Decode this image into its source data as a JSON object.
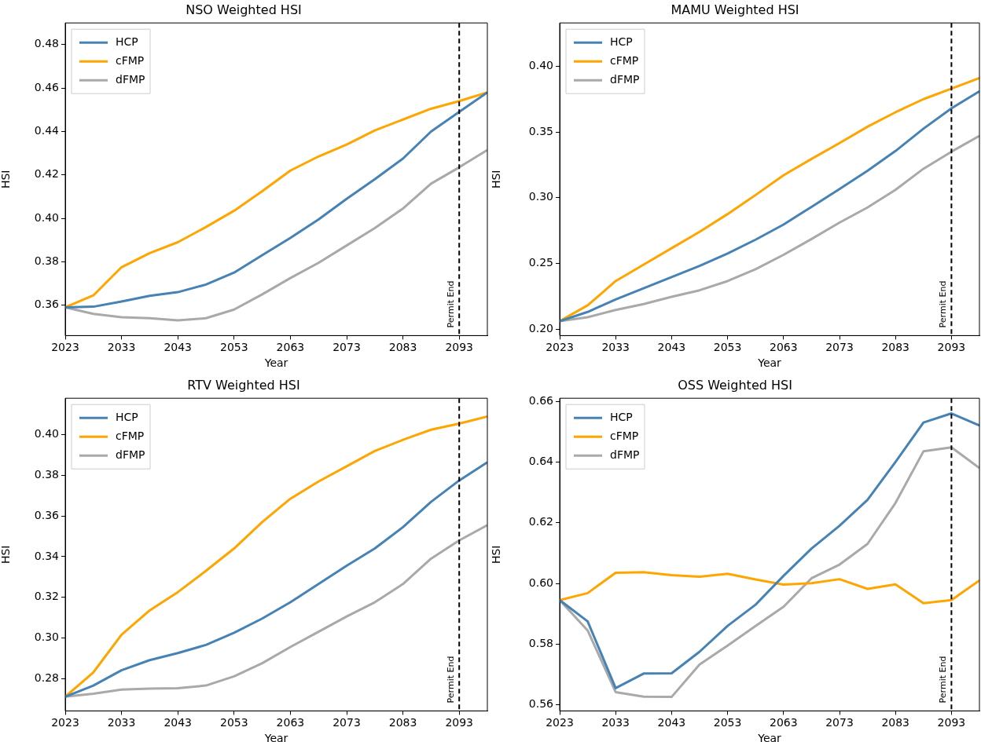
{
  "chart_data": [
    {
      "type": "line",
      "title": "NSO Weighted HSI",
      "xlabel": "Year",
      "ylabel": "HSI",
      "legend": "top left",
      "x": [
        2023,
        2028,
        2033,
        2038,
        2043,
        2048,
        2053,
        2058,
        2063,
        2068,
        2073,
        2078,
        2083,
        2088,
        2093,
        2098
      ],
      "series": [
        {
          "name": "HCP",
          "color": "#4682b4",
          "values": [
            0.359,
            0.3593,
            0.3617,
            0.3643,
            0.366,
            0.3695,
            0.375,
            0.383,
            0.391,
            0.3995,
            0.409,
            0.418,
            0.4275,
            0.44,
            0.449,
            0.458
          ]
        },
        {
          "name": "cFMP",
          "color": "#ffa500",
          "values": [
            0.359,
            0.3645,
            0.3775,
            0.384,
            0.389,
            0.396,
            0.4035,
            0.4125,
            0.422,
            0.4285,
            0.434,
            0.4405,
            0.4455,
            0.4505,
            0.454,
            0.458
          ]
        },
        {
          "name": "dFMP",
          "color": "#a9a9a9",
          "values": [
            0.359,
            0.356,
            0.3545,
            0.354,
            0.353,
            0.354,
            0.358,
            0.365,
            0.3725,
            0.3795,
            0.3875,
            0.3955,
            0.4045,
            0.416,
            0.4235,
            0.4315
          ]
        }
      ],
      "xlim": [
        2023,
        2098
      ],
      "xticks": [
        2023,
        2033,
        2043,
        2053,
        2063,
        2073,
        2083,
        2093
      ],
      "ylim": [
        0.346,
        0.49
      ],
      "yticks": [
        0.36,
        0.38,
        {
          "value": 0.4,
          "label": "0.40"
        },
        0.42,
        0.44,
        0.46,
        0.48
      ],
      "ref_lines": [
        {
          "axis": "x",
          "value": 2093,
          "label": "Permit End",
          "color": "#000000",
          "line_style": "dashed"
        }
      ]
    },
    {
      "type": "line",
      "title": "MAMU Weighted HSI",
      "xlabel": "Year",
      "ylabel": "HSI",
      "legend": "top left",
      "x": [
        2023,
        2028,
        2033,
        2038,
        2043,
        2048,
        2053,
        2058,
        2063,
        2068,
        2073,
        2078,
        2083,
        2088,
        2093,
        2098
      ],
      "series": [
        {
          "name": "HCP",
          "color": "#4682b4",
          "values": [
            0.206,
            0.213,
            0.2225,
            0.231,
            0.2395,
            0.248,
            0.2575,
            0.268,
            0.2795,
            0.293,
            0.3065,
            0.3205,
            0.3355,
            0.3525,
            0.368,
            0.381
          ]
        },
        {
          "name": "cFMP",
          "color": "#ffa500",
          "values": [
            0.206,
            0.218,
            0.2365,
            0.249,
            0.2615,
            0.274,
            0.2875,
            0.302,
            0.317,
            0.3295,
            0.3415,
            0.354,
            0.365,
            0.375,
            0.383,
            0.391
          ]
        },
        {
          "name": "dFMP",
          "color": "#a9a9a9",
          "values": [
            0.206,
            0.209,
            0.2145,
            0.219,
            0.2245,
            0.2295,
            0.2365,
            0.2455,
            0.2565,
            0.2685,
            0.281,
            0.2925,
            0.306,
            0.322,
            0.335,
            0.347
          ]
        }
      ],
      "xlim": [
        2023,
        2098
      ],
      "xticks": [
        2023,
        2033,
        2043,
        2053,
        2063,
        2073,
        2083,
        2093
      ],
      "ylim": [
        0.195,
        0.433
      ],
      "yticks": [
        {
          "value": 0.2,
          "label": "0.20"
        },
        0.25,
        {
          "value": 0.3,
          "label": "0.30"
        },
        0.35,
        {
          "value": 0.4,
          "label": "0.40"
        }
      ],
      "ref_lines": [
        {
          "axis": "x",
          "value": 2093,
          "label": "Permit End",
          "color": "#000000",
          "line_style": "dashed"
        }
      ]
    },
    {
      "type": "line",
      "title": "RTV Weighted HSI",
      "xlabel": "Year",
      "ylabel": "HSI",
      "legend": "top left",
      "x": [
        2023,
        2028,
        2033,
        2038,
        2043,
        2048,
        2053,
        2058,
        2063,
        2068,
        2073,
        2078,
        2083,
        2088,
        2093,
        2098
      ],
      "series": [
        {
          "name": "HCP",
          "color": "#4682b4",
          "values": [
            0.271,
            0.2765,
            0.284,
            0.289,
            0.2925,
            0.2965,
            0.3025,
            0.3095,
            0.3175,
            0.3265,
            0.3355,
            0.344,
            0.3545,
            0.367,
            0.3775,
            0.3865
          ]
        },
        {
          "name": "cFMP",
          "color": "#ffa500",
          "values": [
            0.271,
            0.283,
            0.3015,
            0.3135,
            0.3225,
            0.333,
            0.344,
            0.357,
            0.3685,
            0.377,
            0.3845,
            0.392,
            0.3975,
            0.4025,
            0.4055,
            0.409
          ]
        },
        {
          "name": "dFMP",
          "color": "#a9a9a9",
          "values": [
            0.271,
            0.2725,
            0.2745,
            0.275,
            0.2752,
            0.2765,
            0.281,
            0.2875,
            0.2955,
            0.303,
            0.3105,
            0.3175,
            0.3265,
            0.339,
            0.348,
            0.3555
          ]
        }
      ],
      "xlim": [
        2023,
        2098
      ],
      "xticks": [
        2023,
        2033,
        2043,
        2053,
        2063,
        2073,
        2083,
        2093
      ],
      "ylim": [
        0.264,
        0.418
      ],
      "yticks": [
        0.28,
        {
          "value": 0.3,
          "label": "0.30"
        },
        0.32,
        0.34,
        0.36,
        0.38,
        {
          "value": 0.4,
          "label": "0.40"
        }
      ],
      "ref_lines": [
        {
          "axis": "x",
          "value": 2093,
          "label": "Permit End",
          "color": "#000000",
          "line_style": "dashed"
        }
      ]
    },
    {
      "type": "line",
      "title": "OSS Weighted HSI",
      "xlabel": "Year",
      "ylabel": "HSI",
      "legend": "top left",
      "x": [
        2023,
        2028,
        2033,
        2038,
        2043,
        2048,
        2053,
        2058,
        2063,
        2068,
        2073,
        2078,
        2083,
        2088,
        2093,
        2098
      ],
      "series": [
        {
          "name": "HCP",
          "color": "#4682b4",
          "values": [
            0.5945,
            0.5875,
            0.5655,
            0.5703,
            0.5704,
            0.5775,
            0.586,
            0.593,
            0.6025,
            0.6115,
            0.619,
            0.6275,
            0.64,
            0.653,
            0.656,
            0.652
          ]
        },
        {
          "name": "cFMP",
          "color": "#ffa500",
          "values": [
            0.5945,
            0.5968,
            0.6035,
            0.6037,
            0.6027,
            0.6022,
            0.6032,
            0.6013,
            0.5996,
            0.6001,
            0.6014,
            0.5982,
            0.5997,
            0.5935,
            0.5945,
            0.601
          ]
        },
        {
          "name": "dFMP",
          "color": "#a9a9a9",
          "values": [
            0.5945,
            0.5845,
            0.5642,
            0.5627,
            0.5626,
            0.5733,
            0.5795,
            0.586,
            0.5923,
            0.6017,
            0.6062,
            0.613,
            0.6265,
            0.6435,
            0.6448,
            0.638
          ]
        }
      ],
      "xlim": [
        2023,
        2098
      ],
      "xticks": [
        2023,
        2033,
        2043,
        2053,
        2063,
        2073,
        2083,
        2093
      ],
      "ylim": [
        0.558,
        0.661
      ],
      "yticks": [
        0.56,
        0.58,
        {
          "value": 0.6,
          "label": "0.60"
        },
        0.62,
        0.64,
        0.66
      ],
      "ref_lines": [
        {
          "axis": "x",
          "value": 2093,
          "label": "Permit End",
          "color": "#000000",
          "line_style": "dashed"
        }
      ]
    }
  ]
}
